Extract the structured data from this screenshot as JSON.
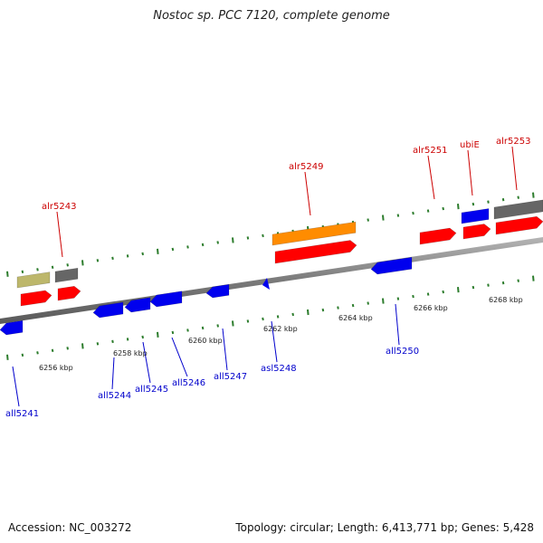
{
  "title": "Nostoc sp. PCC 7120, complete genome",
  "footer": {
    "accession": "Accession: NC_003272",
    "summary": "Topology: circular; Length: 6,413,771 bp; Genes: 5,428"
  },
  "colors": {
    "backbone": "#808080",
    "tick": "#2d7d2d",
    "forward_label": "#cc0000",
    "reverse_label": "#0000cc",
    "red": "#ff0000",
    "blue": "#0000ee",
    "orange": "#ff8c00",
    "gray": "#666666",
    "khaki": "#bdb76b"
  },
  "scale_labels": [
    "6256 kbp",
    "6258 kbp",
    "6260 kbp",
    "6262 kbp",
    "6264 kbp",
    "6266 kbp",
    "6268 kbp"
  ],
  "labels": {
    "forward": [
      "alr5243",
      "alr5249",
      "alr5251",
      "ubiE",
      "alr5253"
    ],
    "reverse": [
      "all5241",
      "all5244",
      "all5245",
      "all5246",
      "all5247",
      "asl5248",
      "all5250"
    ]
  }
}
